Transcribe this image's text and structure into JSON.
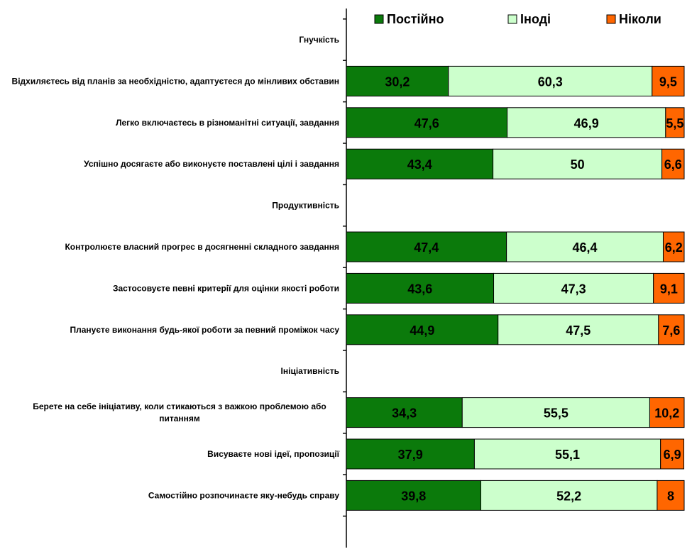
{
  "chart_data": {
    "type": "bar",
    "orientation": "horizontal",
    "stacked": "percent",
    "legend_position": "top",
    "grid": false,
    "xlim": [
      0,
      100
    ],
    "series": [
      {
        "name": "Постійно",
        "color": "#0b7a0b"
      },
      {
        "name": "Іноді",
        "color": "#ccffcc"
      },
      {
        "name": "Ніколи",
        "color": "#ff6600"
      }
    ],
    "rows": [
      {
        "kind": "group",
        "label": "Гнучкість"
      },
      {
        "kind": "bar",
        "label": "Відхиляєтесь від планів за необхідністю, адаптуєтеся до мінливих обставин",
        "values": [
          30.2,
          60.3,
          9.5
        ],
        "value_labels": [
          "30,2",
          "60,3",
          "9,5"
        ]
      },
      {
        "kind": "bar",
        "label": "Легко включаєтесь в різноманітні ситуації, завдання",
        "values": [
          47.6,
          46.9,
          5.5
        ],
        "value_labels": [
          "47,6",
          "46,9",
          "5,5"
        ]
      },
      {
        "kind": "bar",
        "label": "Успішно досягаєте або виконуєте поставлені цілі і завдання",
        "values": [
          43.4,
          50,
          6.6
        ],
        "value_labels": [
          "43,4",
          "50",
          "6,6"
        ]
      },
      {
        "kind": "group",
        "label": "Продуктивність"
      },
      {
        "kind": "bar",
        "label": "Контролюєте власний прогрес в досягненні складного завдання",
        "values": [
          47.4,
          46.4,
          6.2
        ],
        "value_labels": [
          "47,4",
          "46,4",
          "6,2"
        ]
      },
      {
        "kind": "bar",
        "label": "Застосовуєте певні критерії для оцінки якості роботи",
        "values": [
          43.6,
          47.3,
          9.1
        ],
        "value_labels": [
          "43,6",
          "47,3",
          "9,1"
        ]
      },
      {
        "kind": "bar",
        "label": "Плануєте виконання будь-якої роботи за певний проміжок часу",
        "values": [
          44.9,
          47.5,
          7.6
        ],
        "value_labels": [
          "44,9",
          "47,5",
          "7,6"
        ]
      },
      {
        "kind": "group",
        "label": "Ініціативність"
      },
      {
        "kind": "bar",
        "label": "Берете на себе ініціативу, коли стикаються з важкою проблемою або питанням",
        "values": [
          34.3,
          55.5,
          10.2
        ],
        "value_labels": [
          "34,3",
          "55,5",
          "10,2"
        ]
      },
      {
        "kind": "bar",
        "label": "Висуваєте нові ідеї, пропозиції",
        "values": [
          37.9,
          55.1,
          6.9
        ],
        "value_labels": [
          "37,9",
          "55,1",
          "6,9"
        ]
      },
      {
        "kind": "bar",
        "label": "Самостійно розпочинаєте яку-небудь справу",
        "values": [
          39.8,
          52.2,
          8
        ],
        "value_labels": [
          "39,8",
          "52,2",
          "8"
        ]
      }
    ]
  }
}
